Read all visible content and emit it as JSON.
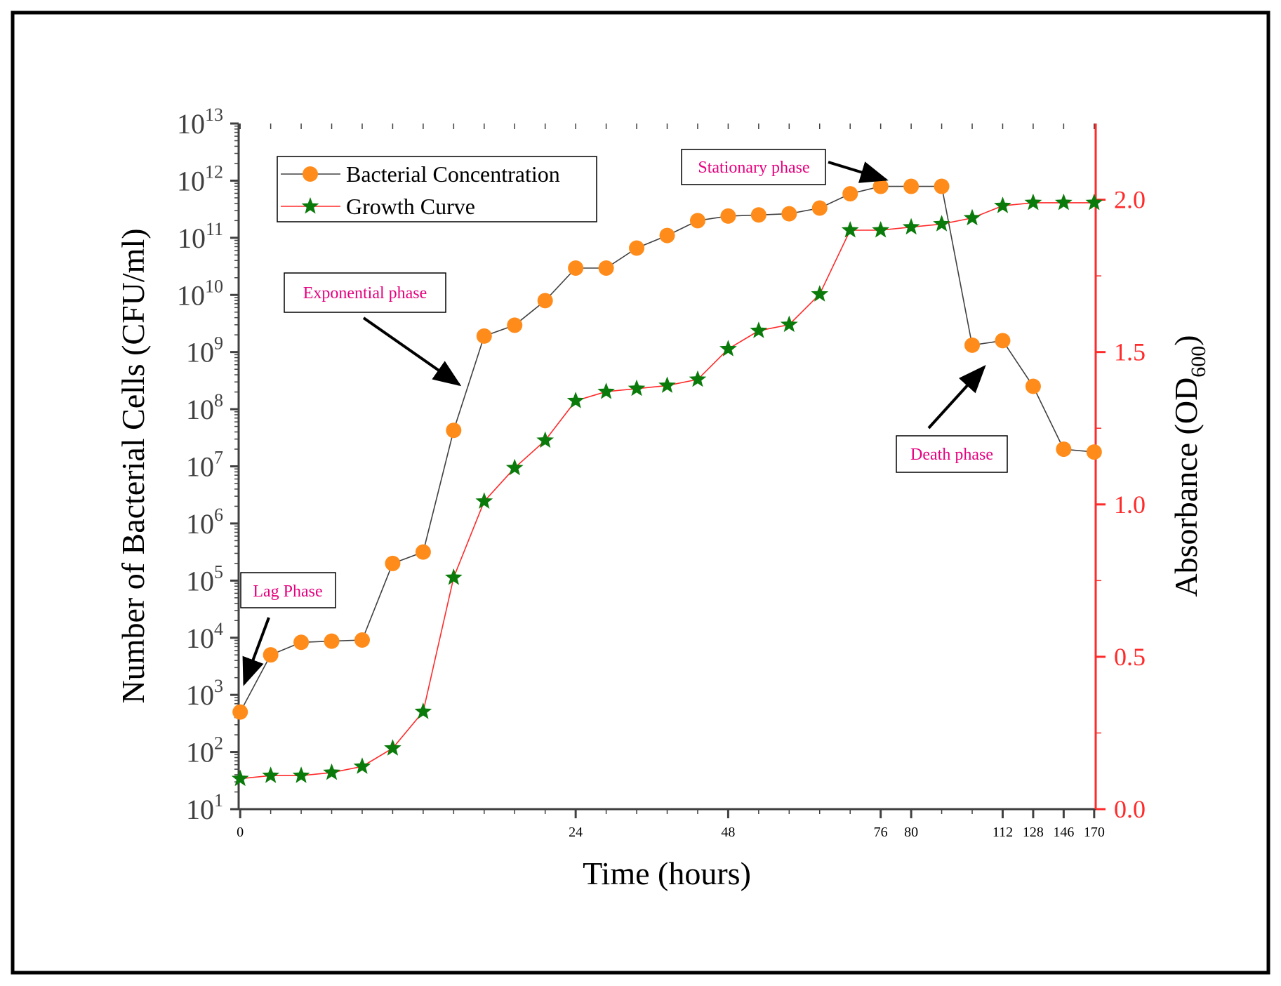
{
  "chart_data": {
    "type": "line",
    "xlabel": "Time (hours)",
    "ylabel_left": "Number of Bacterial Cells (CFU/ml)",
    "ylabel_right_main": "Absorbance (OD",
    "ylabel_right_sub": "600",
    "ylabel_right_end": ")",
    "x_tick_labels": [
      "0",
      "24",
      "48",
      "76",
      "80",
      "112",
      "128",
      "146",
      "170"
    ],
    "x_tick_positions": [
      0,
      11,
      16,
      21,
      22,
      25,
      26,
      27,
      28
    ],
    "left_axis": {
      "scale": "log10",
      "exponent_range": [
        1,
        13
      ],
      "base_label": "10",
      "tick_exponents": [
        "1",
        "2",
        "3",
        "4",
        "5",
        "6",
        "7",
        "8",
        "9",
        "10",
        "11",
        "12",
        "13"
      ]
    },
    "right_axis": {
      "range": [
        0.0,
        2.25
      ],
      "tick_labels": [
        "0.0",
        "0.5",
        "1.0",
        "1.5",
        "2.0"
      ],
      "tick_values": [
        0.0,
        0.5,
        1.0,
        1.5,
        2.0
      ]
    },
    "series": [
      {
        "name": "Bacterial Concentration",
        "axis": "left",
        "color": "#ff8c1a",
        "line_color": "#404040",
        "marker": "circle",
        "x": [
          0,
          1,
          2,
          3,
          4,
          5,
          6,
          7,
          8,
          9,
          10,
          11,
          12,
          13,
          14,
          15,
          16,
          17,
          18,
          19,
          20,
          21,
          22,
          23,
          24,
          25,
          26,
          27,
          28
        ],
        "log10_values": [
          2.7,
          3.7,
          3.92,
          3.94,
          3.96,
          5.3,
          5.5,
          7.63,
          9.28,
          9.47,
          9.9,
          10.47,
          10.47,
          10.82,
          11.04,
          11.3,
          11.38,
          11.4,
          11.42,
          11.52,
          11.77,
          11.9,
          11.9,
          11.9,
          9.12,
          9.2,
          8.4,
          7.3,
          7.25
        ]
      },
      {
        "name": "Growth Curve",
        "axis": "right",
        "color": "#0a7a0a",
        "line_color": "#ff2a2a",
        "marker": "star",
        "x": [
          0,
          1,
          2,
          3,
          4,
          5,
          6,
          7,
          8,
          9,
          10,
          11,
          12,
          13,
          14,
          15,
          16,
          17,
          18,
          19,
          20,
          21,
          22,
          23,
          24,
          25,
          26,
          27,
          28
        ],
        "values": [
          0.1,
          0.11,
          0.11,
          0.12,
          0.14,
          0.2,
          0.32,
          0.76,
          1.01,
          1.12,
          1.21,
          1.34,
          1.37,
          1.38,
          1.39,
          1.41,
          1.51,
          1.57,
          1.59,
          1.69,
          1.9,
          1.9,
          1.91,
          1.92,
          1.94,
          1.98,
          1.99,
          1.99,
          1.99
        ]
      }
    ],
    "legend": [
      "Bacterial Concentration",
      "Growth Curve"
    ],
    "annotations": [
      "Lag Phase",
      "Exponential phase",
      "Stationary phase",
      "Death phase"
    ]
  }
}
